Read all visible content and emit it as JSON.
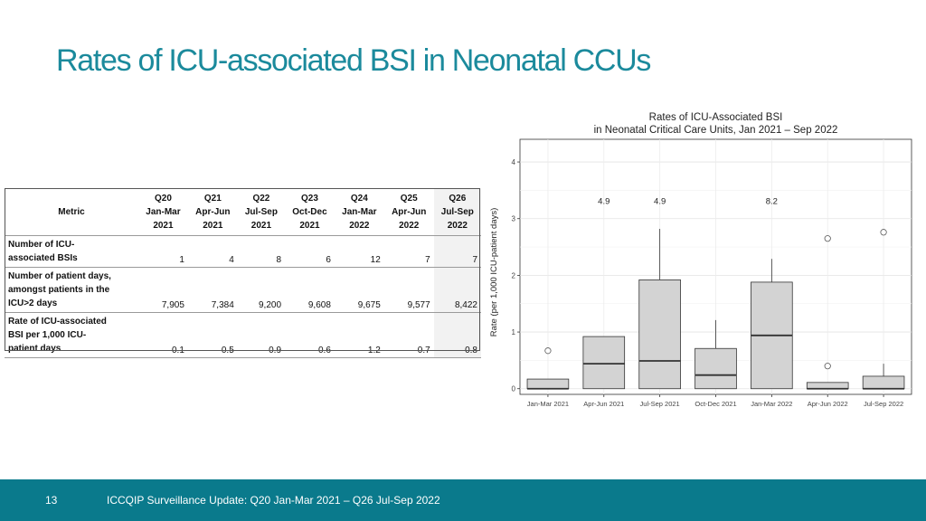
{
  "slide": {
    "title": "Rates of ICU-associated BSI in Neonatal CCUs",
    "page_number": "13",
    "footer": "ICCQIP Surveillance Update: Q20 Jan-Mar 2021 – Q26 Jul-Sep 2022",
    "accent_color": "#1b8a9c",
    "footer_color": "#0a7a8c"
  },
  "table": {
    "metric_header": "Metric",
    "columns": [
      {
        "q": "Q20",
        "months": "Jan-Mar",
        "year": "2021"
      },
      {
        "q": "Q21",
        "months": "Apr-Jun",
        "year": "2021"
      },
      {
        "q": "Q22",
        "months": "Jul-Sep",
        "year": "2021"
      },
      {
        "q": "Q23",
        "months": "Oct-Dec",
        "year": "2021"
      },
      {
        "q": "Q24",
        "months": "Jan-Mar",
        "year": "2022"
      },
      {
        "q": "Q25",
        "months": "Apr-Jun",
        "year": "2022"
      },
      {
        "q": "Q26",
        "months": "Jul-Sep",
        "year": "2022"
      }
    ],
    "rows": [
      {
        "label_lines": [
          "Number of ICU-",
          "associated BSIs"
        ],
        "values": [
          "1",
          "4",
          "8",
          "6",
          "12",
          "7",
          "7"
        ]
      },
      {
        "label_lines": [
          "Number of patient days,",
          "amongst patients in the",
          "ICU>2 days"
        ],
        "values": [
          "7,905",
          "7,384",
          "9,200",
          "9,608",
          "9,675",
          "9,577",
          "8,422"
        ]
      },
      {
        "label_lines": [
          "Rate of ICU-associated",
          "BSI per 1,000 ICU-",
          "patient days"
        ],
        "values": [
          "0.1",
          "0.5",
          "0.9",
          "0.6",
          "1.2",
          "0.7",
          "0.8"
        ]
      }
    ],
    "highlight_color": "#f2f2f2"
  },
  "chart_data": {
    "type": "boxplot",
    "title_lines": [
      "Rates of ICU-Associated BSI",
      "in Neonatal Critical Care Units, Jan 2021 – Sep 2022"
    ],
    "xlabel": "",
    "ylabel": "Rate (per 1,000 ICU-patient days)",
    "ylim": [
      -0.1,
      4.4
    ],
    "yticks": [
      0,
      1,
      2,
      3,
      4
    ],
    "grid": true,
    "box_fill": "#d3d3d3",
    "categories": [
      "Jan-Mar 2021",
      "Apr-Jun 2021",
      "Jul-Sep 2021",
      "Oct-Dec 2021",
      "Jan-Mar 2022",
      "Apr-Jun 2022",
      "Jul-Sep 2022"
    ],
    "boxes": [
      {
        "whisker_low": 0,
        "q1": 0,
        "median": 0,
        "q3": 0.17,
        "whisker_high": 0.17,
        "outliers": [
          0.67
        ],
        "offscale_label": ""
      },
      {
        "whisker_low": 0,
        "q1": 0,
        "median": 0.44,
        "q3": 0.92,
        "whisker_high": 0.92,
        "outliers": [],
        "offscale_label": "4.9"
      },
      {
        "whisker_low": 0,
        "q1": 0,
        "median": 0.49,
        "q3": 1.92,
        "whisker_high": 2.82,
        "outliers": [],
        "offscale_label": "4.9"
      },
      {
        "whisker_low": 0,
        "q1": 0,
        "median": 0.24,
        "q3": 0.71,
        "whisker_high": 1.21,
        "outliers": [],
        "offscale_label": ""
      },
      {
        "whisker_low": 0,
        "q1": 0,
        "median": 0.94,
        "q3": 1.88,
        "whisker_high": 2.29,
        "outliers": [],
        "offscale_label": "8.2"
      },
      {
        "whisker_low": 0,
        "q1": 0,
        "median": 0,
        "q3": 0.11,
        "whisker_high": 0.11,
        "outliers": [
          0.4,
          2.65
        ],
        "offscale_label": ""
      },
      {
        "whisker_low": 0,
        "q1": 0,
        "median": 0,
        "q3": 0.22,
        "whisker_high": 0.44,
        "outliers": [
          2.76
        ],
        "offscale_label": ""
      }
    ]
  }
}
